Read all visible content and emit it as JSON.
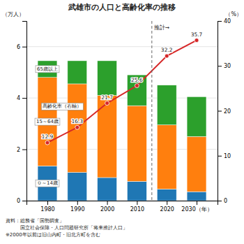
{
  "chart_data": {
    "type": "bar",
    "title": "武雄市の人口と高齢化率の推移",
    "y_label": "（万人）",
    "y2_label": "（%）",
    "x": [
      1980,
      1990,
      2000,
      2010,
      2020,
      2030
    ],
    "xlim": [
      1973,
      2037
    ],
    "xticks": [
      1980,
      1990,
      2000,
      2010,
      2020,
      {
        "value": 2030,
        "label": "2030（年）"
      }
    ],
    "ylim": [
      0,
      7
    ],
    "yticks": [
      0,
      2,
      4,
      6
    ],
    "y2lim": [
      0,
      40
    ],
    "y2ticks": [
      0,
      10,
      20,
      30,
      40
    ],
    "stacked": true,
    "grid": true,
    "series": [
      {
        "name": "０～14歳",
        "values": [
          1.35,
          1.1,
          0.9,
          0.75,
          0.45,
          0.35
        ]
      },
      {
        "name": "15～64歳",
        "values": [
          3.45,
          3.45,
          3.2,
          2.95,
          2.5,
          2.15
        ]
      },
      {
        "name": "65歳以上",
        "values": [
          0.65,
          0.9,
          1.35,
          1.2,
          1.55,
          1.55
        ]
      },
      {
        "name": "高齢化率（右軸）",
        "type": "line",
        "axis": "y2",
        "marker": "circle",
        "data_labels": true,
        "values": [
          12.9,
          16.3,
          21.7,
          25.6,
          32.2,
          35.7
        ]
      }
    ],
    "annotations": [
      "推計→"
    ],
    "footnotes": [
      "資料：総務省「国勢調査」",
      "　　　国立社会保障・人口問題研究所「将来推計人口」",
      "※2000年以前は旧山内町・旧北方町を含む"
    ]
  }
}
